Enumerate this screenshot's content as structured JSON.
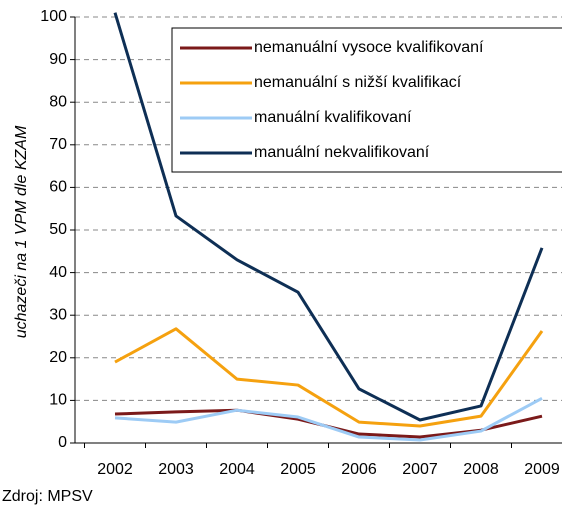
{
  "chart_data": {
    "type": "line",
    "ylabel": "uchazeči na 1 VPM dle KZAM",
    "source": "Zdroj: MPSV",
    "categories": [
      "2002",
      "2003",
      "2004",
      "2005",
      "2006",
      "2007",
      "2008",
      "2009"
    ],
    "series": [
      {
        "name": "nemanuální vysoce kvalifikovaní",
        "color": "#7b1a1a",
        "values": [
          6.8,
          7.3,
          7.7,
          5.6,
          2.1,
          1.4,
          3,
          6.3
        ]
      },
      {
        "name": "nemanuální s nižší kvalifikací",
        "color": "#f5a10f",
        "values": [
          19,
          26.8,
          15,
          13.6,
          4.9,
          4,
          6.3,
          26.3
        ]
      },
      {
        "name": "manuální kvalifikovaní",
        "color": "#9dcbf5",
        "values": [
          5.9,
          4.9,
          7.7,
          6.1,
          1.4,
          0.7,
          2.8,
          10.5
        ]
      },
      {
        "name": "manuální nekvalifikovaní",
        "color": "#0e2f55",
        "values": [
          101,
          53.3,
          43,
          35.4,
          12.7,
          5.4,
          8.7,
          45.8
        ]
      }
    ],
    "ylim": [
      0,
      100
    ],
    "yticks": [
      0,
      10,
      20,
      30,
      40,
      50,
      60,
      70,
      80,
      90,
      100
    ],
    "grid": true
  }
}
